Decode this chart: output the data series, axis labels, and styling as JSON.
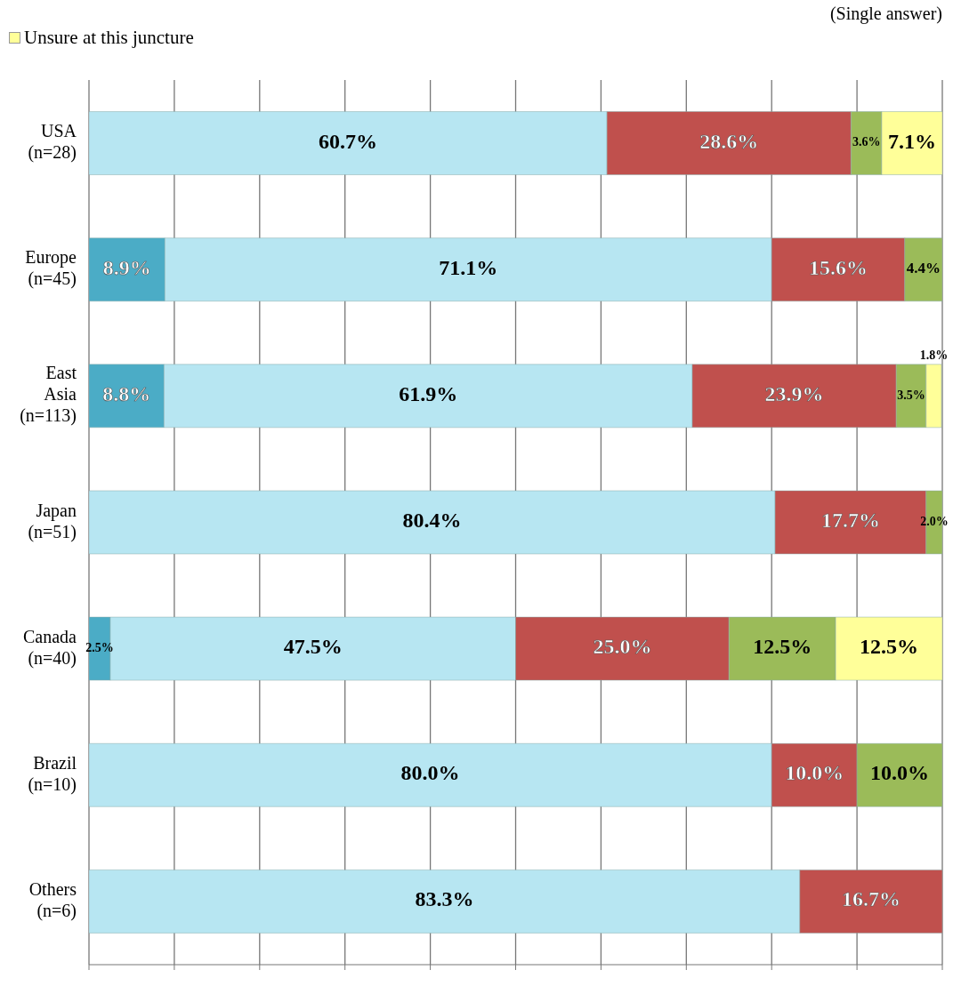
{
  "chart_data": {
    "type": "bar",
    "orientation": "horizontal",
    "stacked": true,
    "annotations": [
      "(Single answer)"
    ],
    "categories": [
      "USA\n(n=28)",
      "Europe\n(n=45)",
      "East\nAsia\n(n=113)",
      "Japan\n(n=51)",
      "Canada\n(n=40)",
      "Brazil\n(n=10)",
      "Others\n(n=6)"
    ],
    "series": [
      {
        "color": "#4bacc6",
        "values": [
          null,
          8.9,
          8.8,
          null,
          2.5,
          null,
          null
        ],
        "value_labels": [
          null,
          "8.9%",
          "8.8%",
          null,
          "2.5%",
          null,
          null
        ]
      },
      {
        "color": "#b7e6f2",
        "values": [
          60.7,
          71.1,
          61.9,
          80.4,
          47.5,
          80.0,
          83.3
        ],
        "value_labels": [
          "60.7%",
          "71.1%",
          "61.9%",
          "80.4%",
          "47.5%",
          "80.0%",
          "83.3%"
        ]
      },
      {
        "color": "#c0504d",
        "values": [
          28.6,
          15.6,
          23.9,
          17.7,
          25.0,
          10.0,
          16.7
        ],
        "value_labels": [
          "28.6%",
          "15.6%",
          "23.9%",
          "17.7%",
          "25.0%",
          "10.0%",
          "16.7%"
        ]
      },
      {
        "color": "#9bbb59",
        "values": [
          3.6,
          4.4,
          3.5,
          2.0,
          12.5,
          10.0,
          null
        ],
        "value_labels": [
          "3.6%",
          "4.4%",
          "3.5%",
          "2.0%",
          "12.5%",
          "10.0%",
          null
        ]
      },
      {
        "name": "Unsure at this juncture",
        "color": "#ffff99",
        "values": [
          7.1,
          null,
          1.8,
          null,
          12.5,
          null,
          null
        ],
        "value_labels": [
          "7.1%",
          null,
          "1.8%",
          null,
          "12.5%",
          null,
          null
        ]
      }
    ],
    "xlim": [
      0,
      100
    ],
    "xticks": [
      0,
      10,
      20,
      30,
      40,
      50,
      60,
      70,
      80,
      90,
      100
    ],
    "tick_labels": "y",
    "grid": "x",
    "legend": "top left"
  }
}
